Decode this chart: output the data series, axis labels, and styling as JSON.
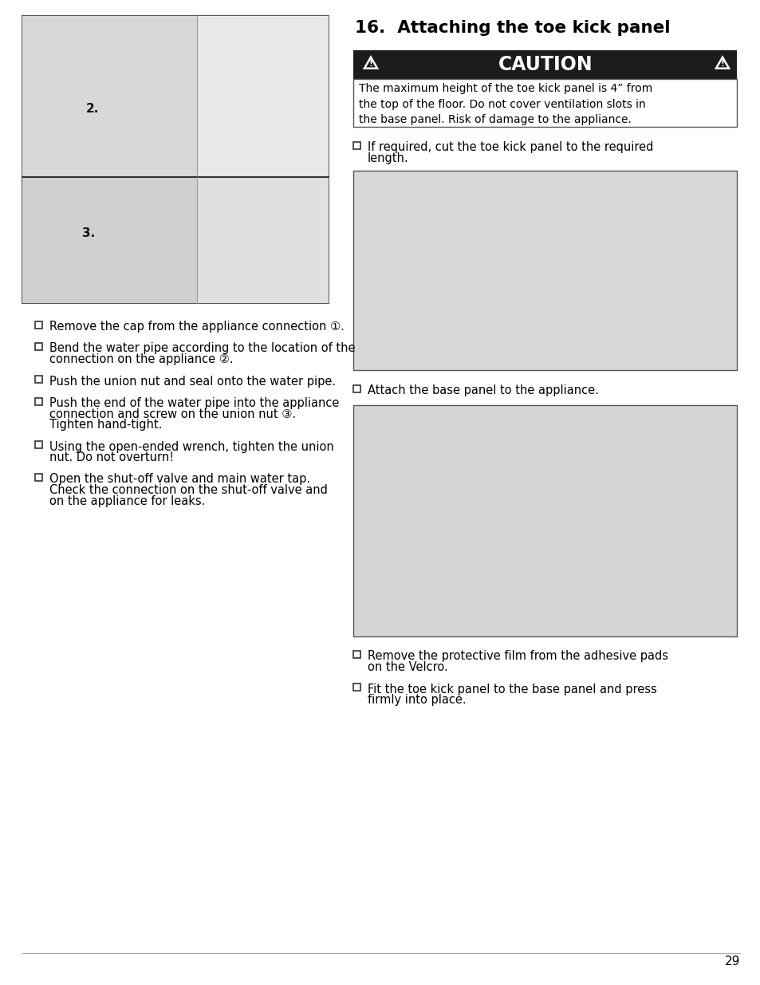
{
  "page_bg": "#ffffff",
  "page_num": "29",
  "title": "16.  Attaching the toe kick panel",
  "title_fontsize": 15.5,
  "caution_bg": "#1c1c1c",
  "caution_text": "CAUTION",
  "caution_fontsize": 17,
  "caution_body": "The maximum height of the toe kick panel is 4” from\nthe top of the floor. Do not cover ventilation slots in\nthe base panel. Risk of damage to the appliance.",
  "caution_body_fontsize": 10,
  "left_bullets": [
    "Remove the cap from the appliance connection ①.",
    "Bend the water pipe according to the location of the\nconnection on the appliance ②.",
    "Push the union nut and seal onto the water pipe.",
    "Push the end of the water pipe into the appliance\nconnection and screw on the union nut ③.\nTighten hand-tight.",
    "Using the open-ended wrench, tighten the union\nnut. Do not overturn!",
    "Open the shut-off valve and main water tap.\nCheck the connection on the shut-off valve and\non the appliance for leaks."
  ],
  "right_bullet_1": "If required, cut the toe kick panel to the required\nlength.",
  "right_bullet_2": "Attach the base panel to the appliance.",
  "right_bullet_3": "Remove the protective film from the adhesive pads\non the Velcro.",
  "right_bullet_4": "Fit the toe kick panel to the base panel and press\nfirmly into place.",
  "bullet_fontsize": 10.5,
  "text_color": "#000000",
  "img_border": "#555555",
  "img_fill_light": "#e0e0e0",
  "img_fill_dark": "#c8c8c8"
}
